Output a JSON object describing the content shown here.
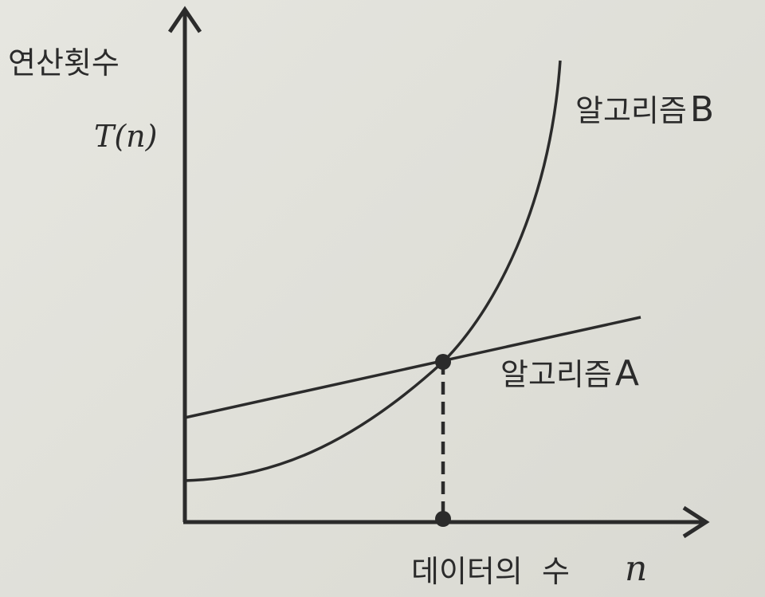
{
  "chart_data": {
    "type": "line",
    "ylabel": "연산횟수",
    "yvar": "T(n)",
    "xlabel": "데이터의  수",
    "xvar": "n",
    "series": [
      {
        "name": "알고리즘 A",
        "label_main": "알고리즘",
        "label_letter": "A",
        "shape": "linear"
      },
      {
        "name": "알고리즘 B",
        "label_main": "알고리즘",
        "label_letter": "B",
        "shape": "exponential"
      }
    ],
    "intersection_marker": true,
    "grid": false,
    "legend": "inline-labels"
  }
}
